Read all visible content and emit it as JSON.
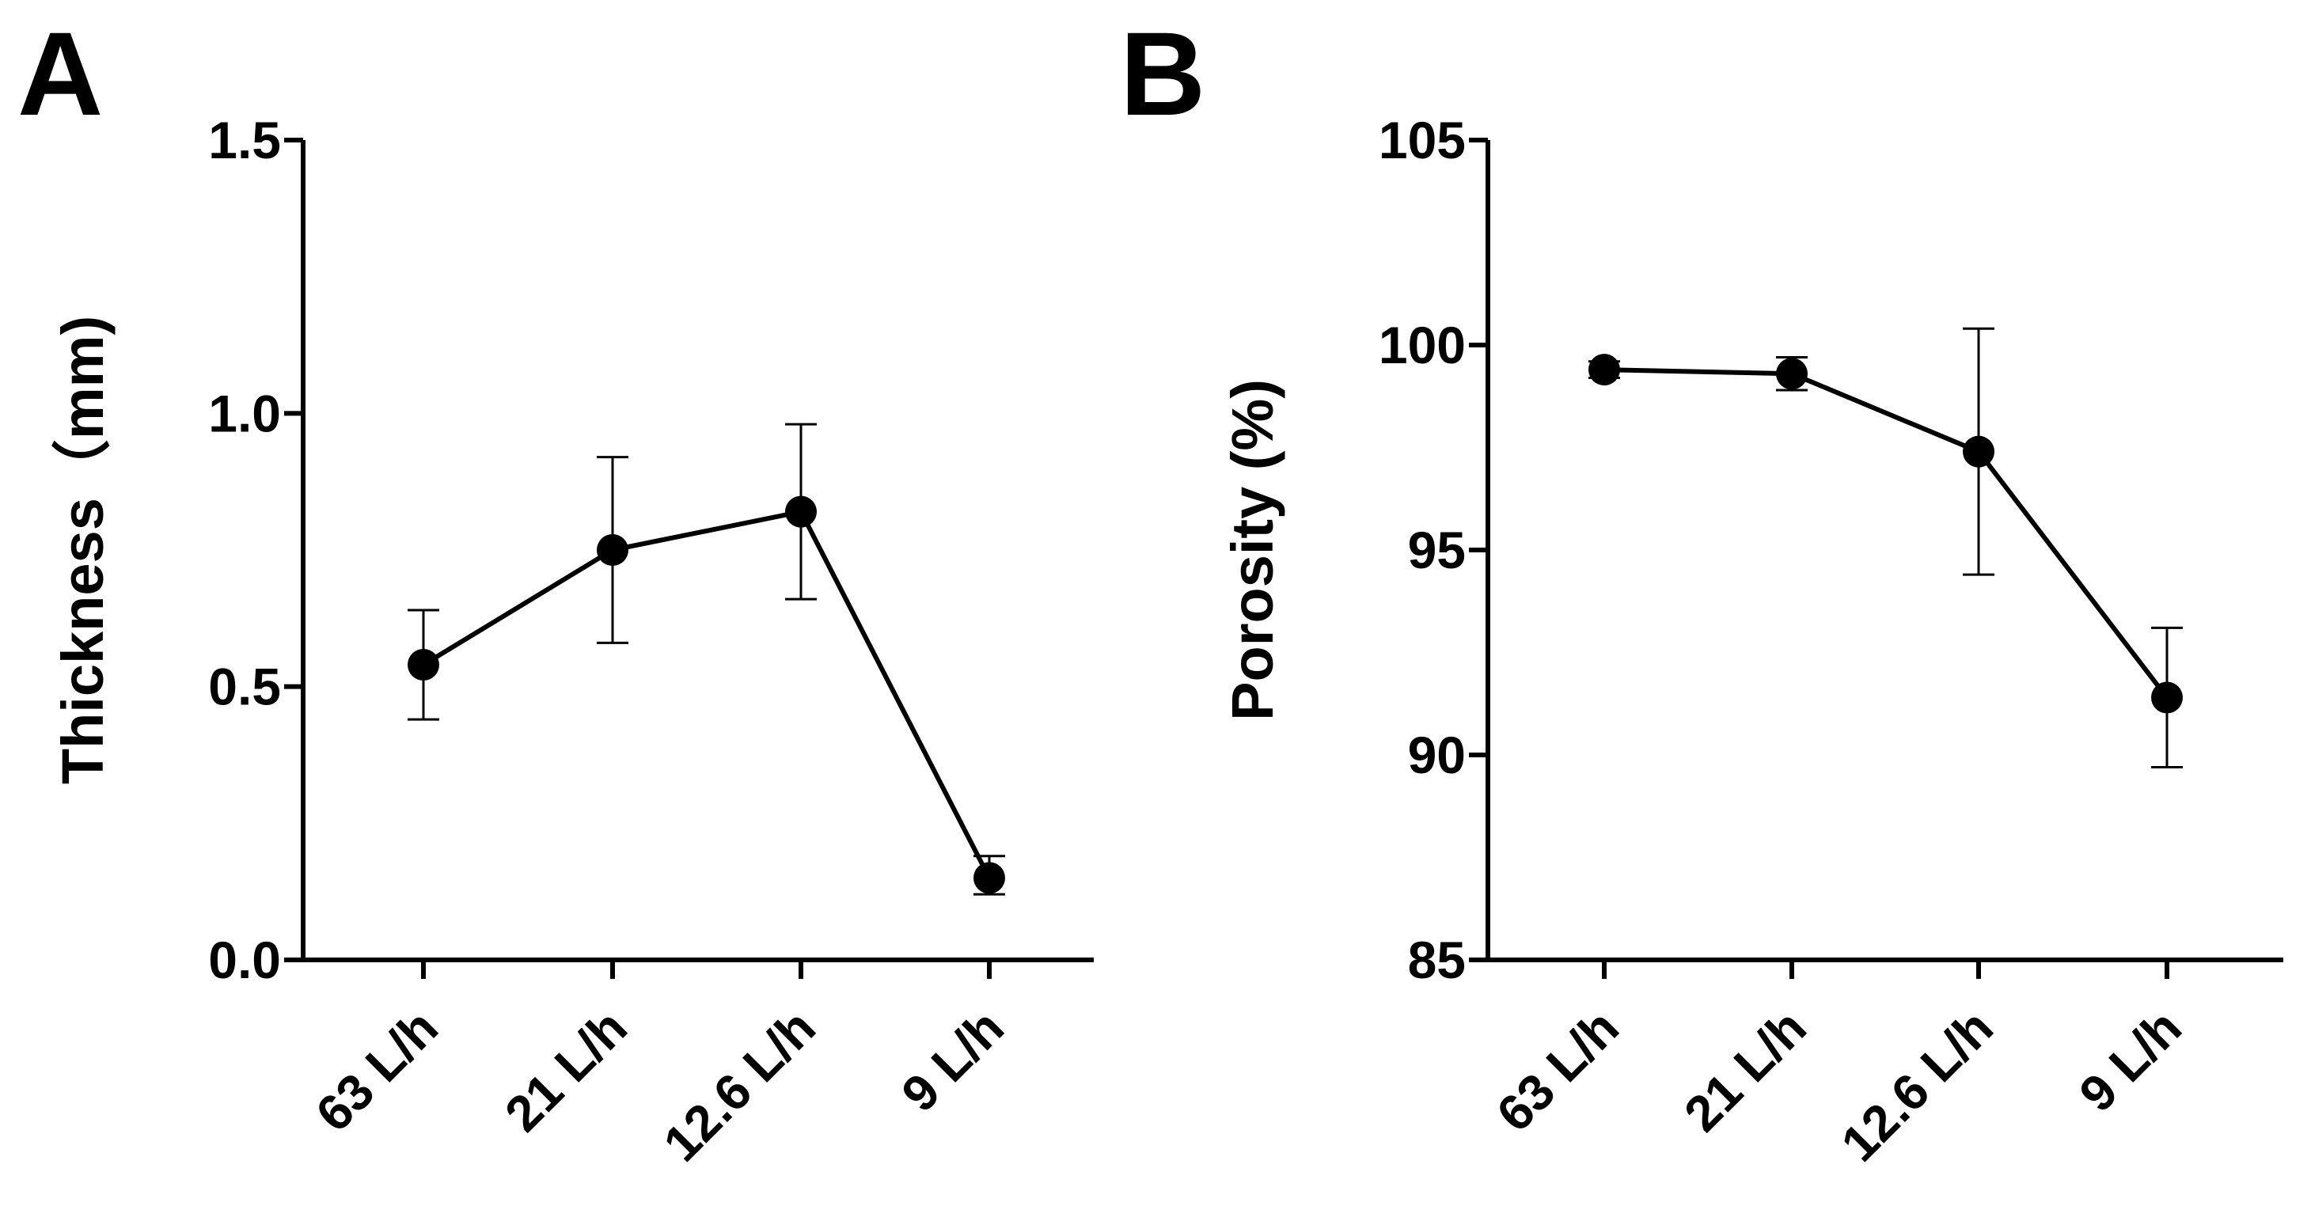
{
  "colors": {
    "ink": "#000000",
    "background": "#ffffff"
  },
  "chart_data": [
    {
      "panel": "A",
      "type": "line",
      "categories": [
        "63 L/h",
        "21 L/h",
        "12.6 L/h",
        "9 L/h"
      ],
      "values": [
        0.54,
        0.75,
        0.82,
        0.15
      ],
      "errors_upper": [
        0.64,
        0.92,
        0.98,
        0.19
      ],
      "errors_lower": [
        0.44,
        0.58,
        0.66,
        0.12
      ],
      "ylabel": "Thickness（mm)",
      "xlabel": "",
      "ylim": [
        0,
        1.5
      ],
      "yticks": [
        0,
        0.5,
        1.0,
        1.5
      ],
      "ytick_labels": [
        "0.0",
        "0.5",
        "1.0",
        "1.5"
      ],
      "grid": false
    },
    {
      "panel": "B",
      "type": "line",
      "categories": [
        "63 L/h",
        "21 L/h",
        "12.6 L/h",
        "9 L/h"
      ],
      "values": [
        99.4,
        99.3,
        97.4,
        91.4
      ],
      "errors_upper": [
        99.6,
        99.7,
        100.4,
        93.1
      ],
      "errors_lower": [
        99.2,
        98.9,
        94.4,
        89.7
      ],
      "ylabel": "Porosity (%)",
      "xlabel": "",
      "ylim": [
        85,
        105
      ],
      "yticks": [
        85,
        90,
        95,
        100,
        105
      ],
      "ytick_labels": [
        "85",
        "90",
        "95",
        "100",
        "105"
      ],
      "grid": false
    }
  ]
}
